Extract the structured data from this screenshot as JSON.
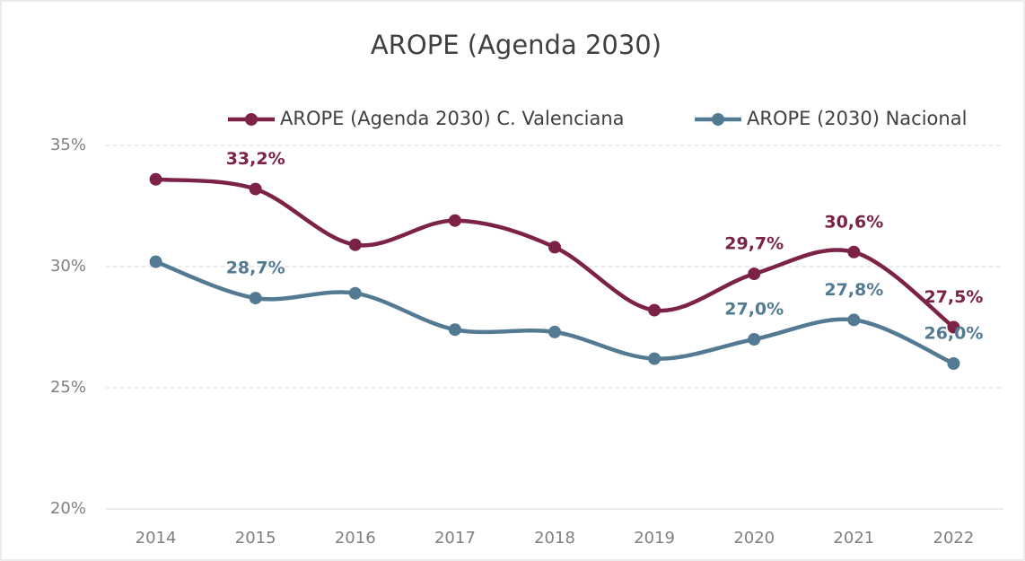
{
  "chart_data": {
    "type": "line",
    "title": "AROPE (Agenda 2030)",
    "categories": [
      "2014",
      "2015",
      "2016",
      "2017",
      "2018",
      "2019",
      "2020",
      "2021",
      "2022"
    ],
    "series": [
      {
        "name": "AROPE (Agenda 2030) C. Valenciana",
        "color": "#7b2246",
        "values": [
          33.6,
          33.2,
          30.9,
          31.9,
          30.8,
          28.2,
          29.7,
          30.6,
          27.5
        ],
        "value_labels": [
          null,
          "33,2%",
          null,
          null,
          null,
          null,
          "29,7%",
          "30,6%",
          "27,5%"
        ]
      },
      {
        "name": "AROPE (2030) Nacional",
        "color": "#537a93",
        "values": [
          30.2,
          28.7,
          28.9,
          27.4,
          27.3,
          26.2,
          27.0,
          27.8,
          26.0
        ],
        "value_labels": [
          null,
          "28,7%",
          null,
          null,
          null,
          null,
          "27,0%",
          "27,8%",
          "26,0%"
        ]
      }
    ],
    "ylim": [
      20,
      35
    ],
    "yticks": [
      {
        "value": 20,
        "label": "20%"
      },
      {
        "value": 25,
        "label": "25%"
      },
      {
        "value": 30,
        "label": "30%"
      },
      {
        "value": 35,
        "label": "35%"
      }
    ],
    "grid": true,
    "legend": "top"
  }
}
